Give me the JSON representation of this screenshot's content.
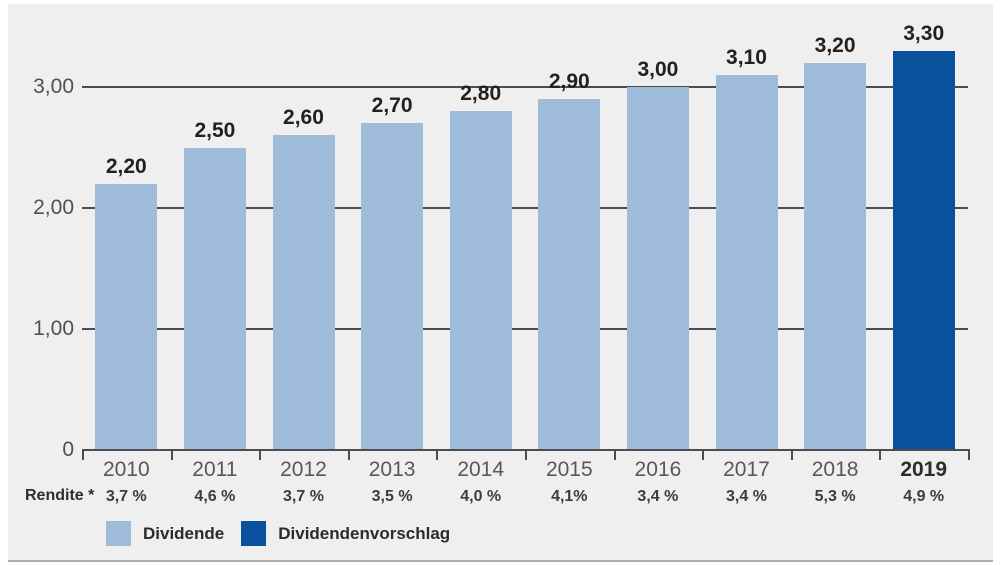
{
  "colors": {
    "panel_background": "#efefef",
    "panel_bottom_border": "#ababab",
    "axis": "#4c4d4f",
    "axis_text": "#4f5052",
    "value_label_text": "#212121",
    "dividende": "#9fbbda",
    "dividendenvorschlag": "#09509d"
  },
  "chart_data": {
    "type": "bar",
    "categories": [
      "2010",
      "2011",
      "2012",
      "2013",
      "2014",
      "2015",
      "2016",
      "2017",
      "2018",
      "2019"
    ],
    "values": [
      2.2,
      2.5,
      2.6,
      2.7,
      2.8,
      2.9,
      3.0,
      3.1,
      3.2,
      3.3
    ],
    "value_labels": [
      "2,20",
      "2,50",
      "2,60",
      "2,70",
      "2,80",
      "2,90",
      "3,00",
      "3,10",
      "3,20",
      "3,30"
    ],
    "bar_series": [
      "Dividende",
      "Dividende",
      "Dividende",
      "Dividende",
      "Dividende",
      "Dividende",
      "Dividende",
      "Dividende",
      "Dividende",
      "Dividendenvorschlag"
    ],
    "highlighted_category": "2019",
    "yticks": [
      {
        "value": 0,
        "label": "0"
      },
      {
        "value": 1,
        "label": "1,00"
      },
      {
        "value": 2,
        "label": "2,00"
      },
      {
        "value": 3,
        "label": "3,00"
      }
    ],
    "ylim": [
      0,
      3.65
    ],
    "grid": "on",
    "rendite_label": "Rendite *",
    "rendite": [
      "3,7 %",
      "4,6 %",
      "3,7 %",
      "3,5 %",
      "4,0 %",
      "4,1%",
      "3,4 %",
      "3,4 %",
      "5,3 %",
      "4,9 %"
    ],
    "legend": [
      {
        "label": "Dividende",
        "color": "#9fbbda"
      },
      {
        "label": "Dividendenvorschlag",
        "color": "#09509d"
      }
    ],
    "legend_position": "bottom-left"
  }
}
